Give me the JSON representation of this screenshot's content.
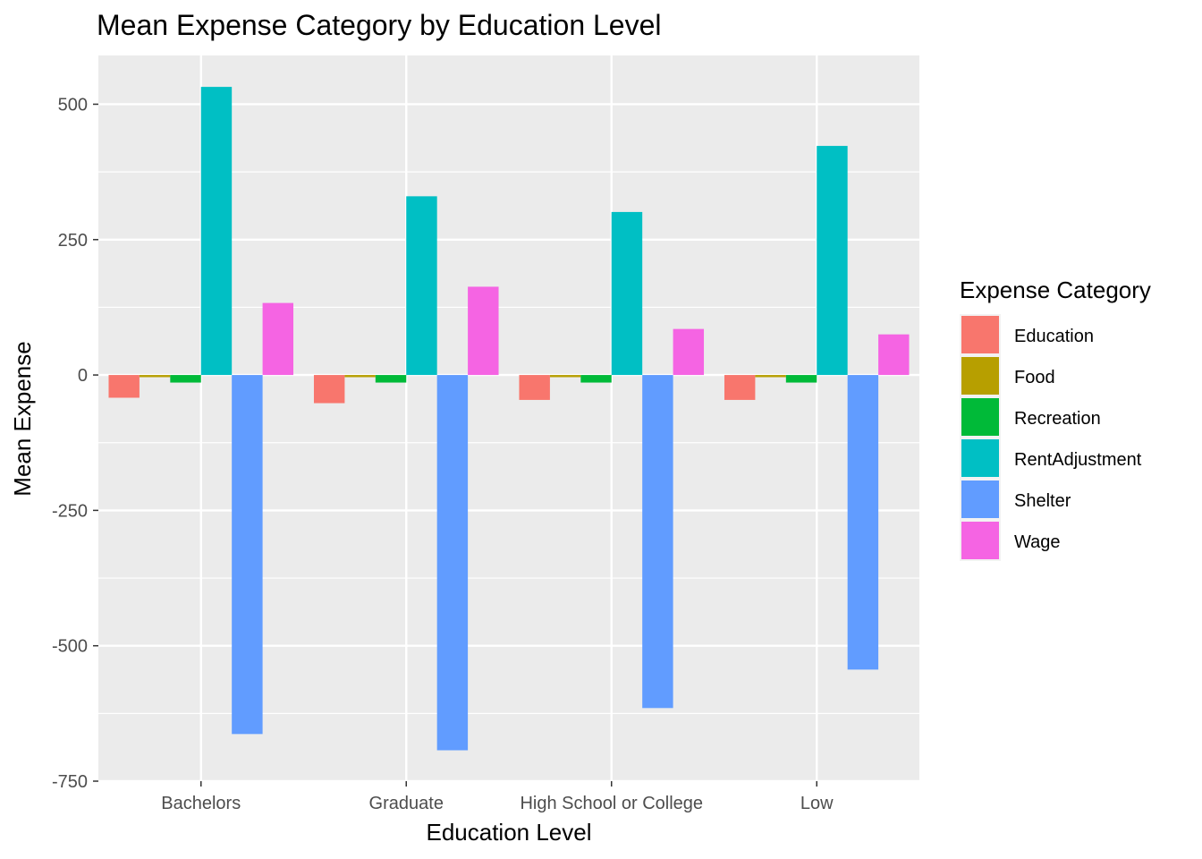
{
  "chart_data": {
    "type": "bar",
    "title": "Mean Expense Category by Education Level",
    "xlabel": "Education Level",
    "ylabel": "Mean Expense",
    "categories": [
      "Bachelors",
      "Graduate",
      "High School or College",
      "Low"
    ],
    "ylim": [
      -750,
      590
    ],
    "yticks": [
      500,
      250,
      0,
      -250,
      -500,
      -750
    ],
    "ytick_labels": [
      "500",
      "250",
      "0",
      "-250",
      "-500",
      "-750"
    ],
    "grid": true,
    "legend": {
      "title": "Expense Category",
      "placement": "right"
    },
    "series": [
      {
        "name": "Education",
        "color": "#F8766D",
        "values": [
          -42,
          -52,
          -46,
          -46
        ]
      },
      {
        "name": "Food",
        "color": "#B79F00",
        "values": [
          -4,
          -4,
          -4,
          -4
        ]
      },
      {
        "name": "Recreation",
        "color": "#00BA38",
        "values": [
          -14,
          -14,
          -14,
          -14
        ]
      },
      {
        "name": "RentAdjustment",
        "color": "#00BFC4",
        "values": [
          532,
          330,
          301,
          423
        ]
      },
      {
        "name": "Shelter",
        "color": "#619CFF",
        "values": [
          -663,
          -693,
          -615,
          -544
        ]
      },
      {
        "name": "Wage",
        "color": "#F564E3",
        "values": [
          133,
          163,
          85,
          75
        ]
      }
    ]
  }
}
